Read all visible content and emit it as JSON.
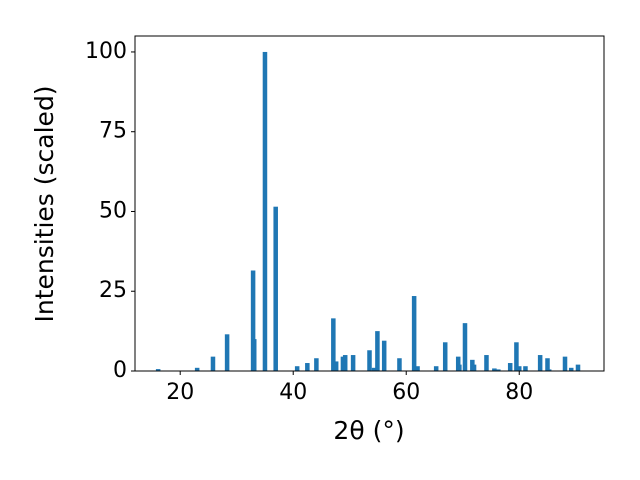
{
  "chart_data": {
    "type": "bar",
    "x_label": "2θ (°)",
    "y_label": "Intensities (scaled)",
    "x": [
      16.1,
      23.0,
      25.8,
      28.3,
      32.9,
      33.1,
      35.0,
      36.9,
      40.7,
      42.5,
      44.1,
      47.1,
      47.6,
      48.8,
      49.2,
      50.6,
      53.5,
      54.3,
      54.9,
      56.1,
      58.8,
      61.4,
      62.0,
      65.3,
      66.9,
      69.2,
      69.4,
      70.4,
      71.7,
      72.0,
      74.2,
      75.6,
      76.3,
      78.4,
      79.5,
      80.0,
      81.1,
      83.7,
      85.0,
      85.3,
      88.1,
      89.2,
      90.4
    ],
    "values": [
      0.6,
      1,
      4.5,
      11.5,
      31.5,
      10,
      100,
      51.5,
      1.5,
      2.5,
      4,
      16.5,
      3,
      4.5,
      5,
      5,
      6.5,
      1,
      12.5,
      9.5,
      4,
      23.5,
      1.5,
      1.5,
      9,
      4.5,
      2,
      15,
      3.5,
      2,
      5,
      0.8,
      0.5,
      2.5,
      9,
      1.5,
      1.5,
      5,
      4,
      0.5,
      4.5,
      1,
      2
    ],
    "color": "#1f77b4",
    "xlim": [
      12,
      95
    ],
    "xticks": [
      20,
      40,
      60,
      80
    ],
    "ylim": [
      0,
      105
    ],
    "yticks": [
      0,
      25,
      50,
      75,
      100
    ],
    "grid": false
  }
}
